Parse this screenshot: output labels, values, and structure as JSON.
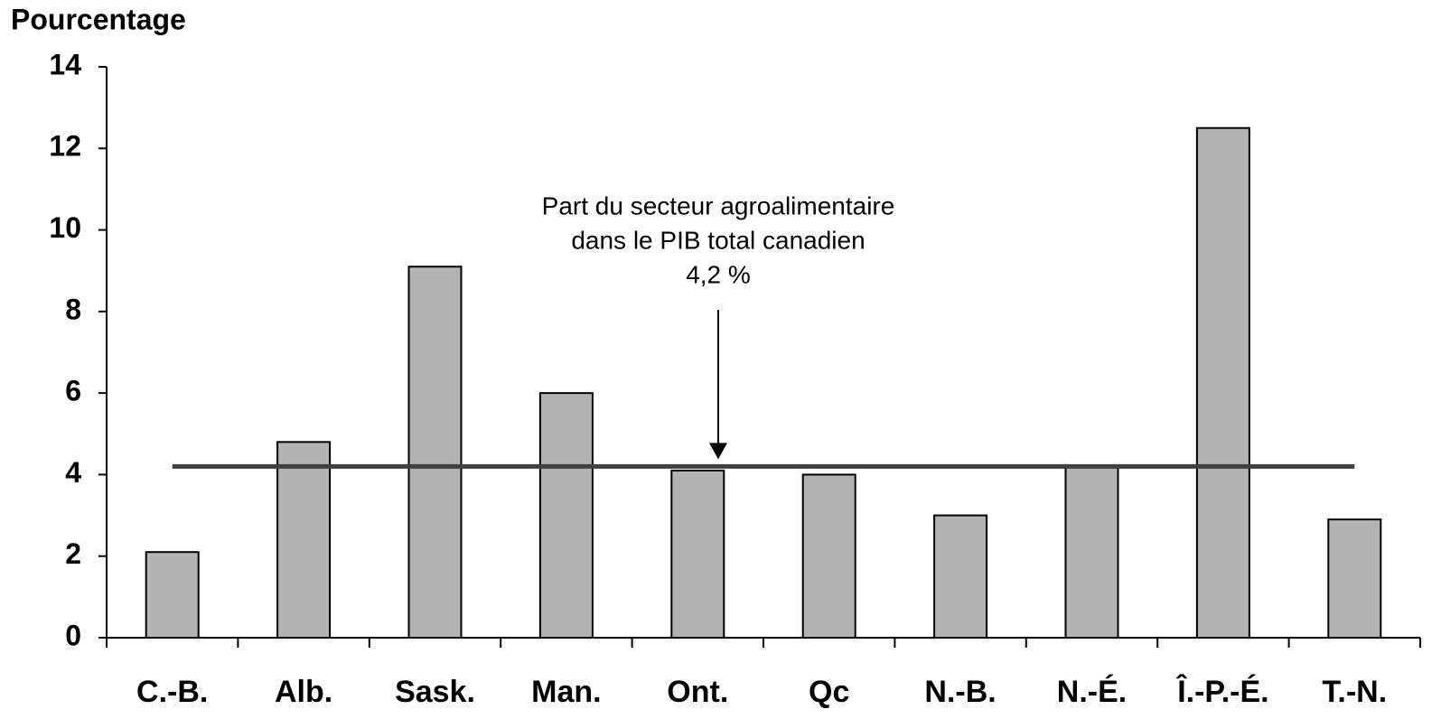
{
  "chart_data": {
    "type": "bar",
    "y_label": "Pourcentage",
    "categories": [
      "C.-B.",
      "Alb.",
      "Sask.",
      "Man.",
      "Ont.",
      "Qc",
      "N.-B.",
      "N.-É.",
      "Î.-P.-É.",
      "T.-N."
    ],
    "values": [
      2.1,
      4.8,
      9.1,
      6.0,
      4.1,
      4.0,
      3.0,
      4.2,
      12.5,
      2.9
    ],
    "color": "#b3b3b3",
    "ylim": [
      0,
      14
    ],
    "yticks": [
      0,
      2,
      4,
      6,
      8,
      10,
      12,
      14
    ],
    "grid": false,
    "reference_line": {
      "value": 4.2,
      "color": "#404040"
    },
    "annotation": [
      "Part du secteur agroalimentaire",
      "dans le PIB total canadien",
      "4,2 %"
    ]
  }
}
